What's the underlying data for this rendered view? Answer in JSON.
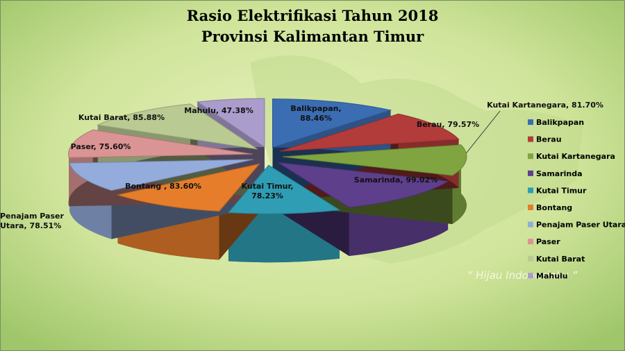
{
  "chart_data": {
    "type": "pie",
    "title": "Rasio Elektrifikasi Tahun 2018",
    "subtitle": "Provinsi Kalimantan Timur",
    "categories": [
      "Balikpapan",
      "Berau",
      "Kutai Kartanegara",
      "Samarinda",
      "Kutai Timur",
      "Bontang",
      "Penajam Paser Utara",
      "Paser",
      "Kutai Barat",
      "Mahulu"
    ],
    "values": [
      88.46,
      79.57,
      81.7,
      99.02,
      78.23,
      83.6,
      78.51,
      75.6,
      85.88,
      47.38
    ],
    "value_labels": [
      "Balikpapan, 88.46%",
      "Berau, 79.57%",
      "Kutai Kartanegara, 81.70%",
      "Samarinda, 99.02%",
      "Kutai Timur, 78.23%",
      "Bontang , 83.60%",
      "Penajam Paser Utara, 78.51%",
      "Paser, 75.60%",
      "Kutai Barat, 85.88%",
      "Mahulu, 47.38%"
    ],
    "colors": [
      "#3b6db3",
      "#b23c3a",
      "#80a540",
      "#5e3f8c",
      "#2f9db3",
      "#e67d2a",
      "#93acdb",
      "#db9494",
      "#b9ca92",
      "#aa9ccb"
    ],
    "legend": "right",
    "watermark": "“ Hijau Indonesiaku ”"
  }
}
